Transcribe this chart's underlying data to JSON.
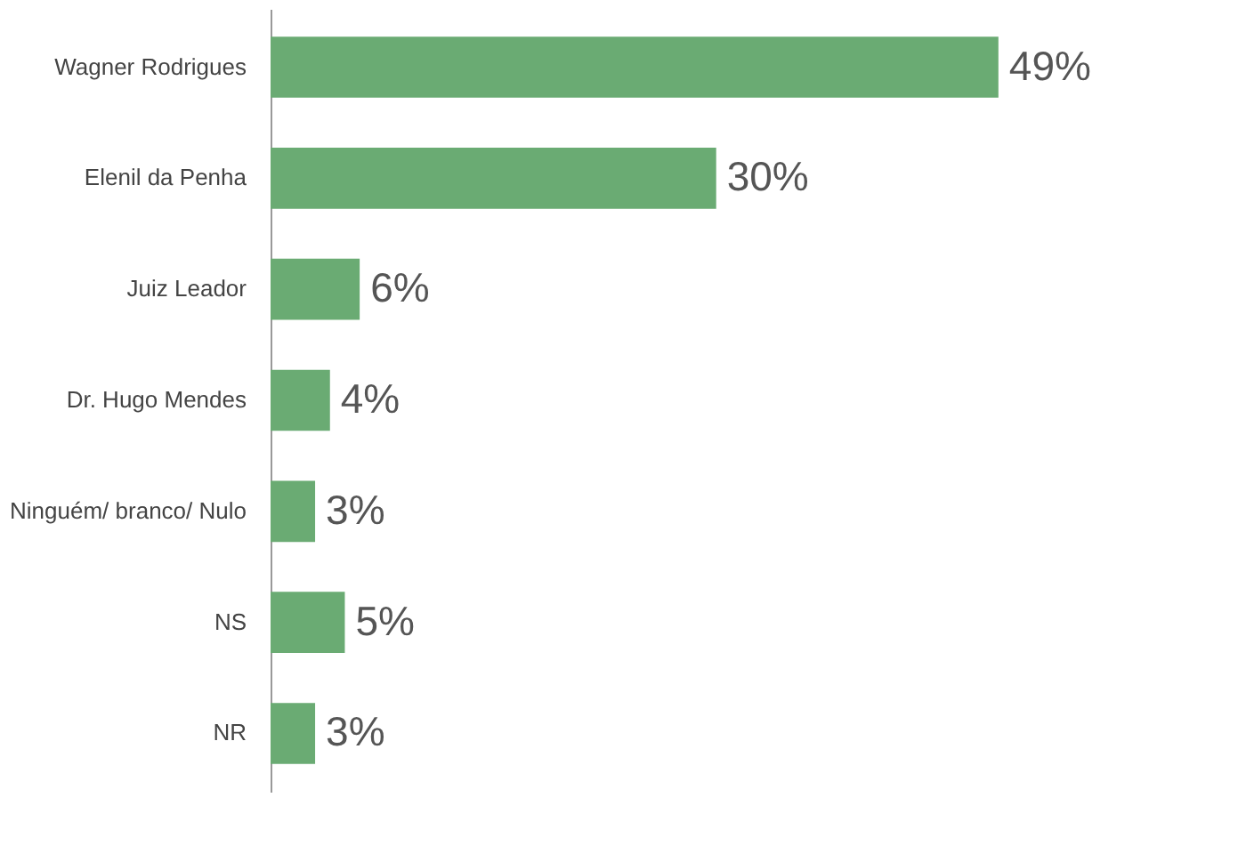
{
  "chart_data": {
    "type": "bar",
    "orientation": "horizontal",
    "categories": [
      "Wagner Rodrigues",
      "Elenil da Penha",
      "Juiz Leador",
      "Dr. Hugo Mendes",
      "Ninguém/ branco/ Nulo",
      "NS",
      "NR"
    ],
    "values": [
      49,
      30,
      6,
      4,
      3,
      5,
      3
    ],
    "value_labels": [
      "49%",
      "30%",
      "6%",
      "4%",
      "3%",
      "5%",
      "3%"
    ],
    "color": "#6aab73"
  }
}
